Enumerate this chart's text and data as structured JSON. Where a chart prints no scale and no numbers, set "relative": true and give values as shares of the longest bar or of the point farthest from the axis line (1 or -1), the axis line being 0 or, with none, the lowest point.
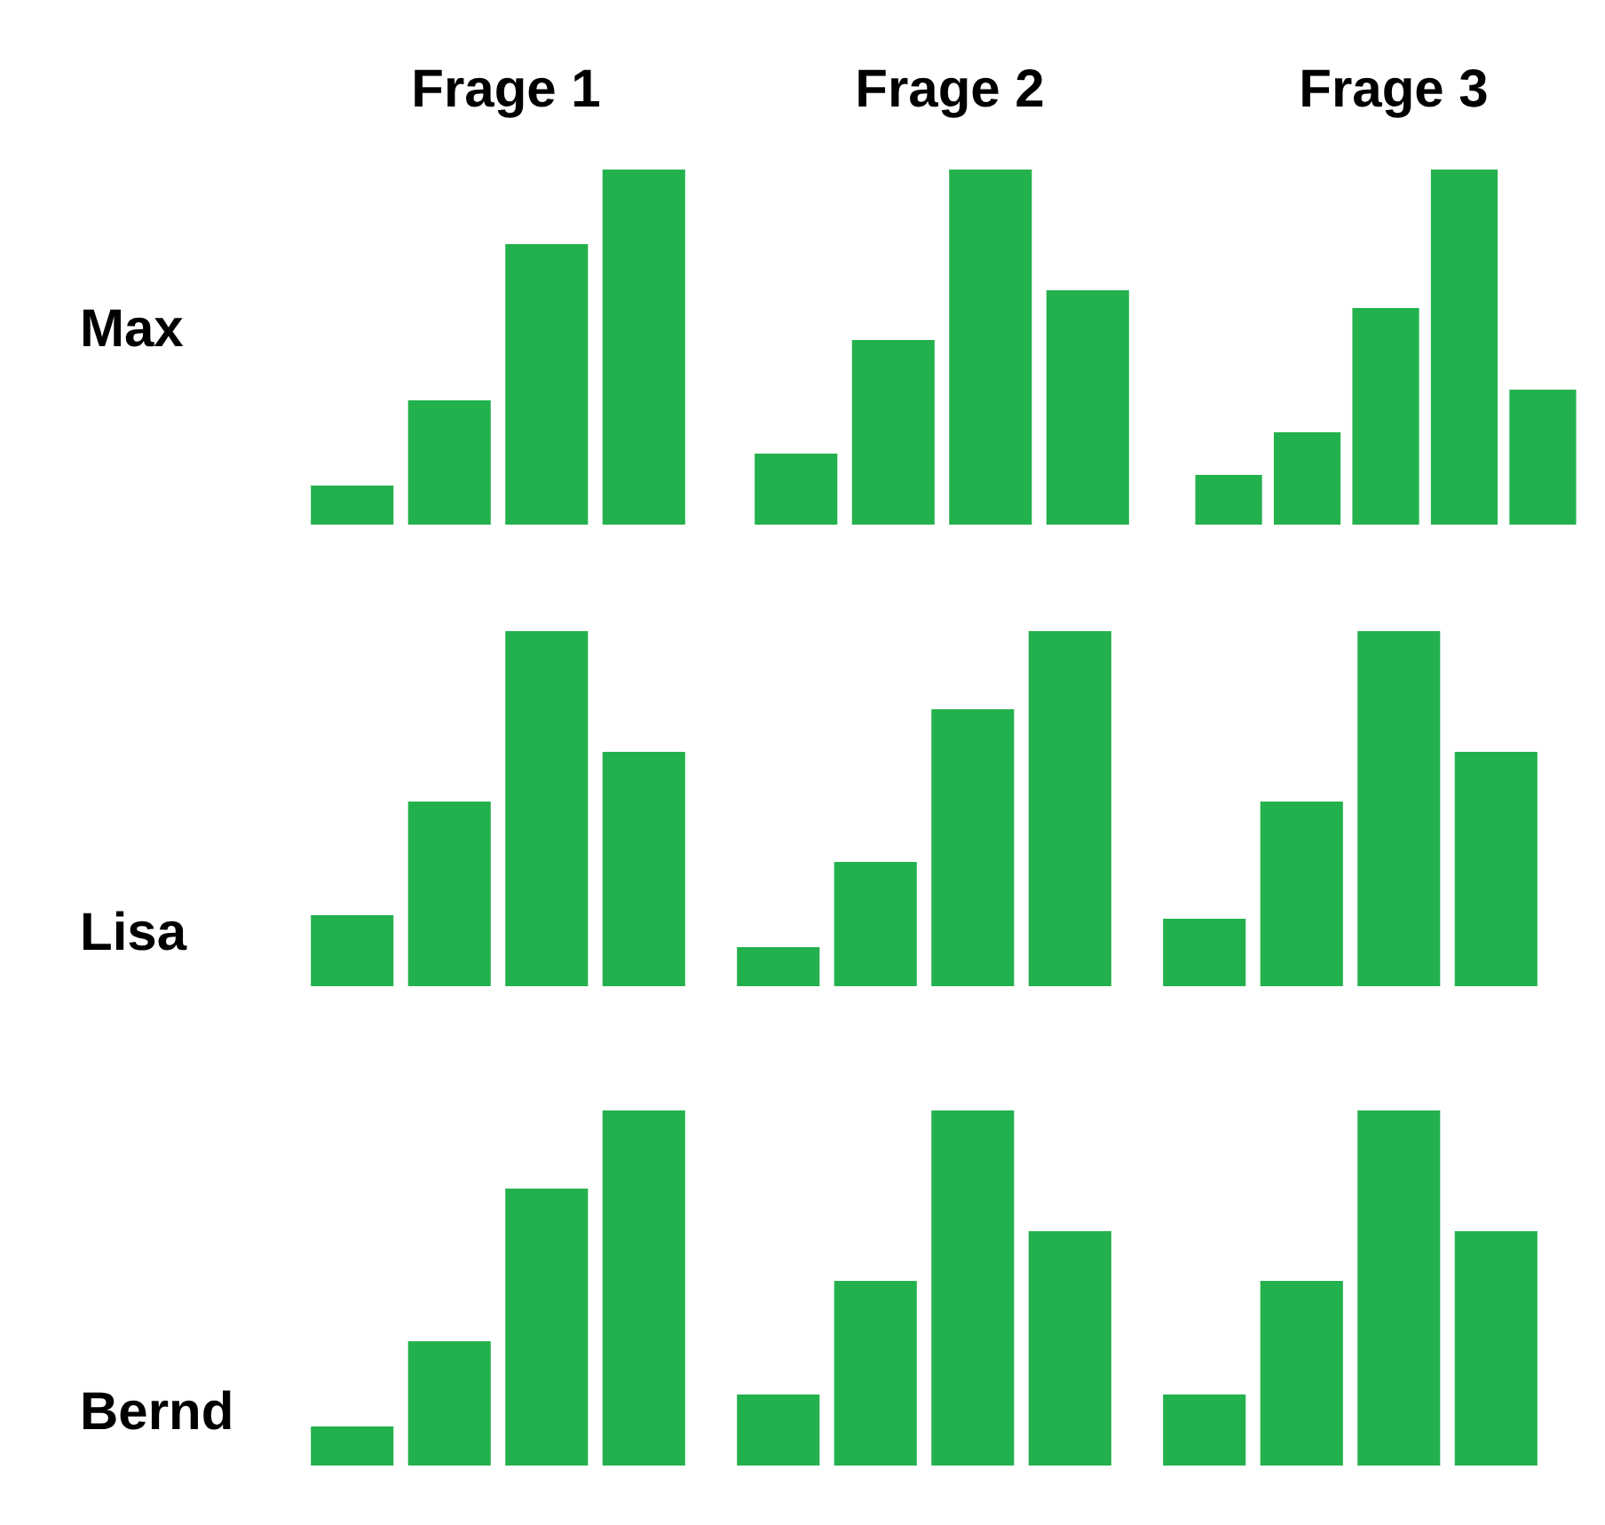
{
  "chart_data": [
    {
      "type": "bar",
      "relative": true,
      "title": "Frage 1",
      "ylabel": "Max",
      "color": "#23b14d",
      "categories": [
        null,
        null,
        null,
        null
      ],
      "values": [
        0.11,
        0.35,
        0.79,
        1
      ]
    },
    {
      "type": "bar",
      "relative": true,
      "title": "Frage 2",
      "color": "#23b14d",
      "categories": [
        null,
        null,
        null,
        null
      ],
      "values": [
        0.2,
        0.52,
        1,
        0.66
      ]
    },
    {
      "type": "bar",
      "relative": true,
      "title": "Frage 3",
      "color": "#23b14d",
      "categories": [
        null,
        null,
        null,
        null,
        null
      ],
      "values": [
        0.14,
        0.26,
        0.61,
        1,
        0.38
      ]
    },
    {
      "type": "bar",
      "relative": true,
      "ylabel": "Lisa",
      "color": "#23b14d",
      "categories": [
        null,
        null,
        null,
        null
      ],
      "values": [
        0.2,
        0.52,
        1,
        0.66
      ]
    },
    {
      "type": "bar",
      "relative": true,
      "color": "#23b14d",
      "categories": [
        null,
        null,
        null,
        null
      ],
      "values": [
        0.11,
        0.35,
        0.78,
        1
      ]
    },
    {
      "type": "bar",
      "relative": true,
      "color": "#23b14d",
      "categories": [
        null,
        null,
        null,
        null
      ],
      "values": [
        0.19,
        0.52,
        1,
        0.66
      ]
    },
    {
      "type": "bar",
      "relative": true,
      "ylabel": "Bernd",
      "color": "#23b14d",
      "categories": [
        null,
        null,
        null,
        null
      ],
      "values": [
        0.11,
        0.35,
        0.78,
        1
      ]
    },
    {
      "type": "bar",
      "relative": true,
      "color": "#23b14d",
      "categories": [
        null,
        null,
        null,
        null
      ],
      "values": [
        0.2,
        0.52,
        1,
        0.66
      ]
    },
    {
      "type": "bar",
      "relative": true,
      "color": "#23b14d",
      "categories": [
        null,
        null,
        null,
        null
      ],
      "values": [
        0.2,
        0.52,
        1,
        0.66
      ]
    }
  ]
}
